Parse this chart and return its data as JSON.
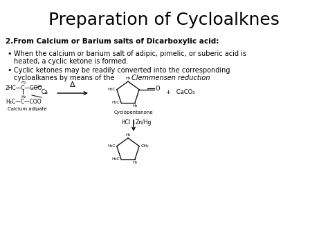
{
  "title": "Preparation of Cycloalknes",
  "bg": "#ffffff",
  "title_fs": 18,
  "heading": "2.From Calcium or Barium salts of Dicarboxylic acid:",
  "b1l1": "When the calcium or barium salt of adipic, pimelic, or suberic acid is",
  "b1l2": "heated, a cyclic ketone is formed.",
  "b2l1": "Cyclic ketones may be readily converted into the corresponding",
  "b2l2": "cycloalkanes by means of the ",
  "b2italic": "Clemmensen reduction",
  "ca_label": "Calcium adipate",
  "cp_label": "Cyclopentanone",
  "delta": "Δ",
  "plus_caco3": "+   CaCO₃"
}
